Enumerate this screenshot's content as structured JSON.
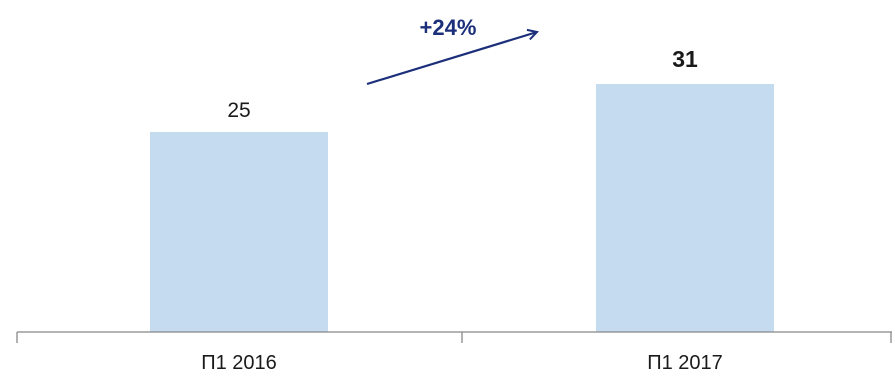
{
  "chart_data": {
    "type": "bar",
    "categories": [
      "П1 2016",
      "П1 2017"
    ],
    "values": [
      25,
      31
    ],
    "value_labels": [
      "25",
      "31"
    ],
    "ylim": [
      0,
      37.5
    ],
    "grid": false,
    "annotation": {
      "text": "+24%"
    },
    "colors": {
      "bar": "#c5dbf0",
      "axis": "#888888",
      "annotation": "#1c2f7a",
      "text": "#1a1a1a"
    }
  }
}
